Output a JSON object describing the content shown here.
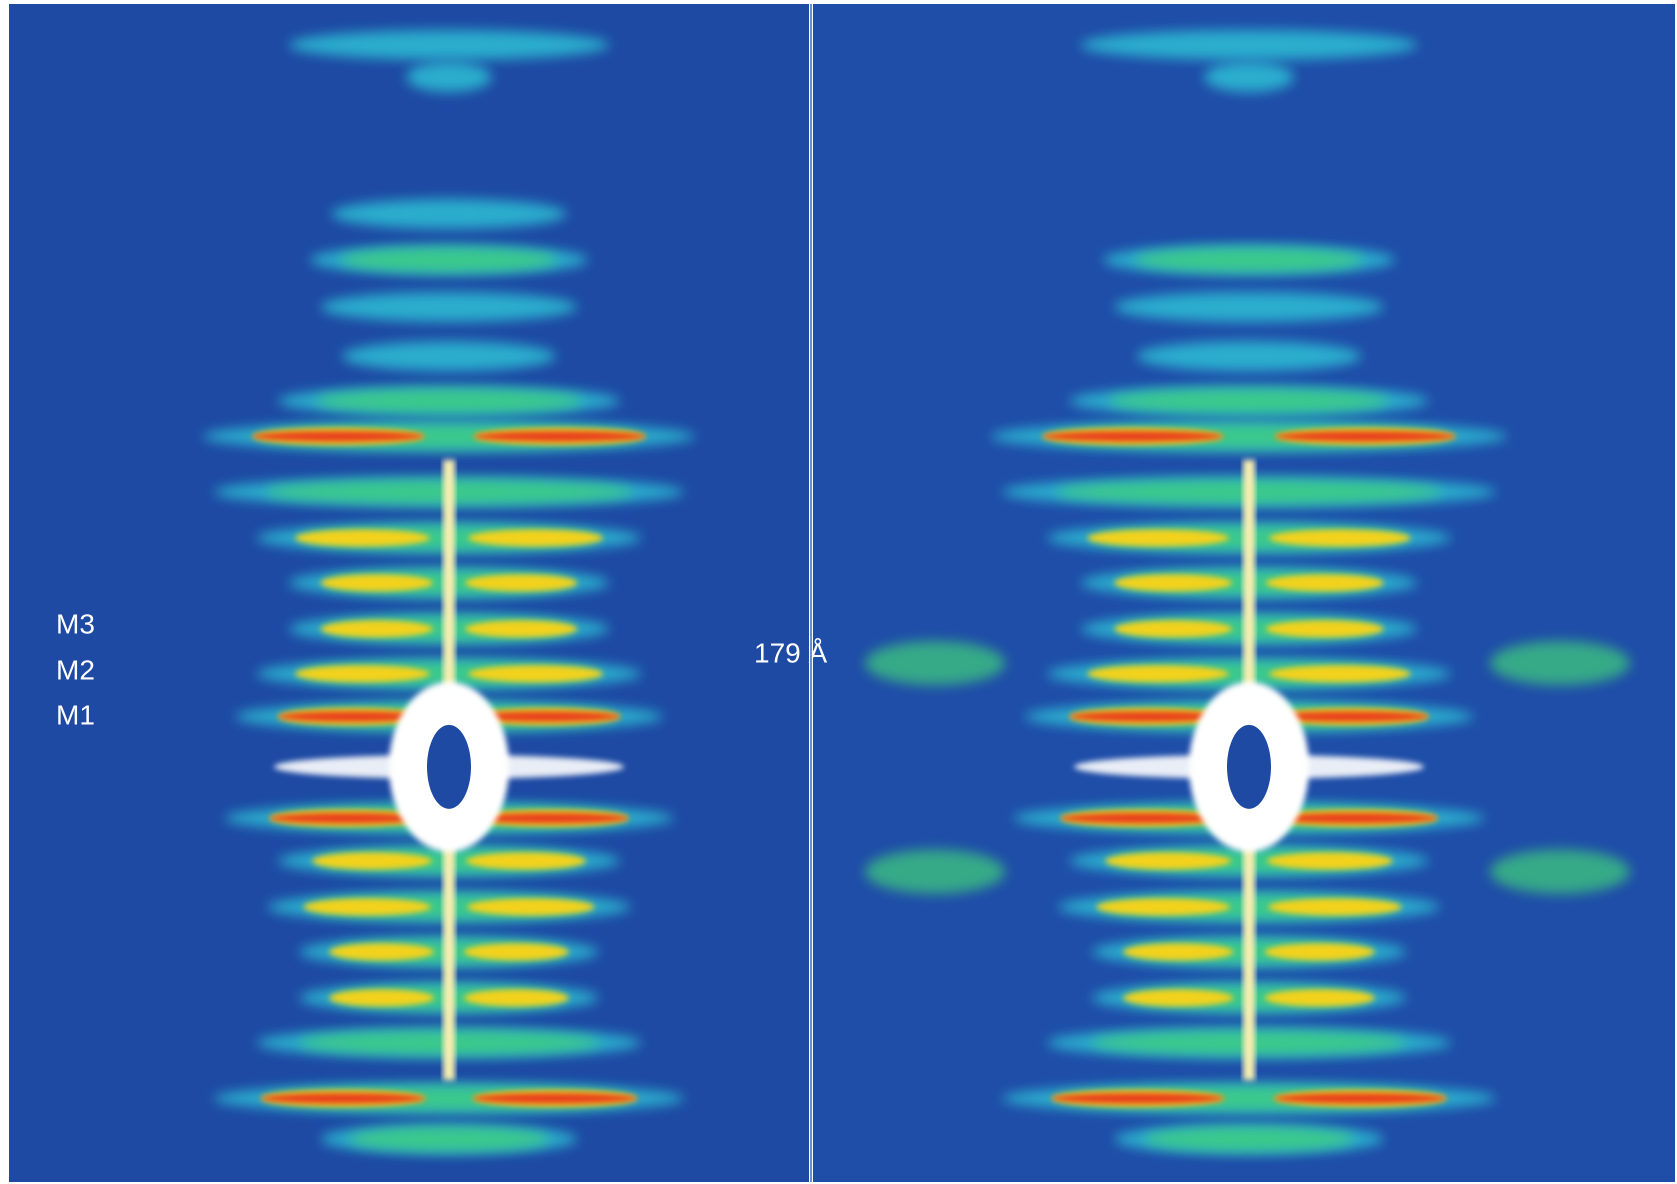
{
  "annotations": {
    "left_panel": [
      "M3",
      "M2",
      "M1"
    ],
    "right_panel": [
      "179 Å"
    ]
  }
}
